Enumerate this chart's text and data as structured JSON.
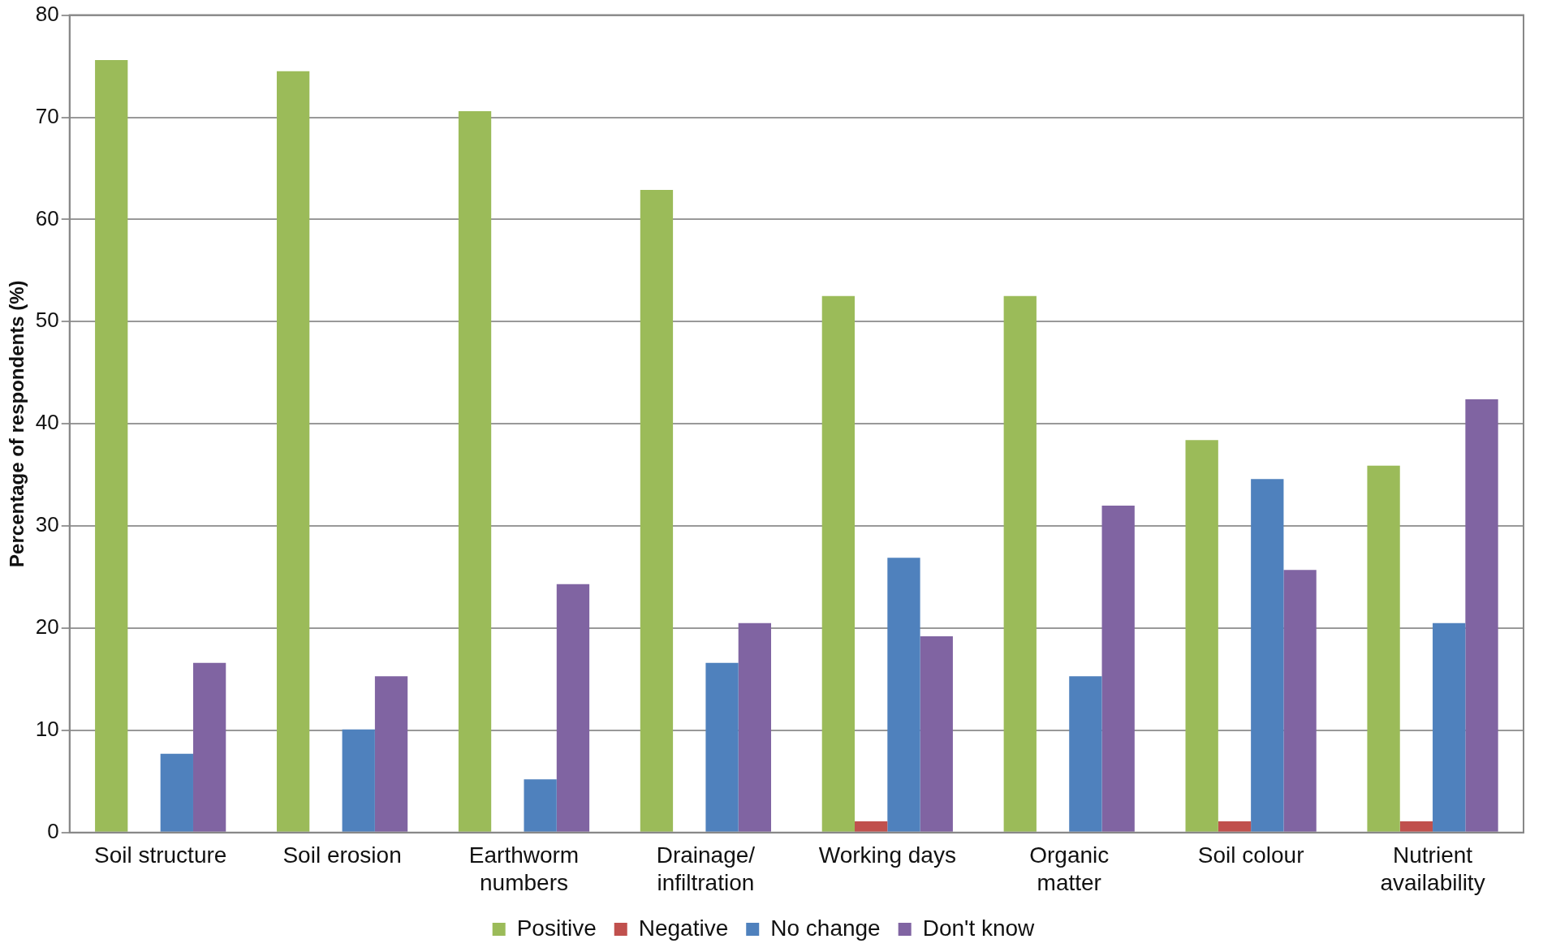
{
  "chart_data": {
    "type": "bar",
    "ylabel": "Percentage of respondents (%)",
    "categories": [
      "Soil structure",
      "Soil erosion",
      "Earthworm\nnumbers",
      "Drainage/\ninfiltration",
      "Working days",
      "Organic\nmatter",
      "Soil colour",
      "Nutrient\navailability"
    ],
    "series": [
      {
        "name": "Positive",
        "color": "#9bbb59",
        "values": [
          75.6,
          74.5,
          70.6,
          62.9,
          52.5,
          52.5,
          38.4,
          35.9
        ]
      },
      {
        "name": "Negative",
        "color": "#c0504d",
        "values": [
          0,
          0,
          0,
          0,
          1.1,
          0,
          1.1,
          1.1
        ]
      },
      {
        "name": "No change",
        "color": "#4f81bd",
        "values": [
          7.7,
          10.1,
          5.2,
          16.6,
          26.9,
          15.3,
          34.6,
          20.5
        ]
      },
      {
        "name": "Don't know",
        "color": "#8064a2",
        "values": [
          16.6,
          15.3,
          24.3,
          20.5,
          19.2,
          32.0,
          25.7,
          42.4
        ]
      }
    ],
    "ylim": [
      0,
      80
    ],
    "yticks": [
      0,
      10,
      20,
      30,
      40,
      50,
      60,
      70,
      80
    ],
    "grid": "y",
    "legend": "bottom"
  }
}
